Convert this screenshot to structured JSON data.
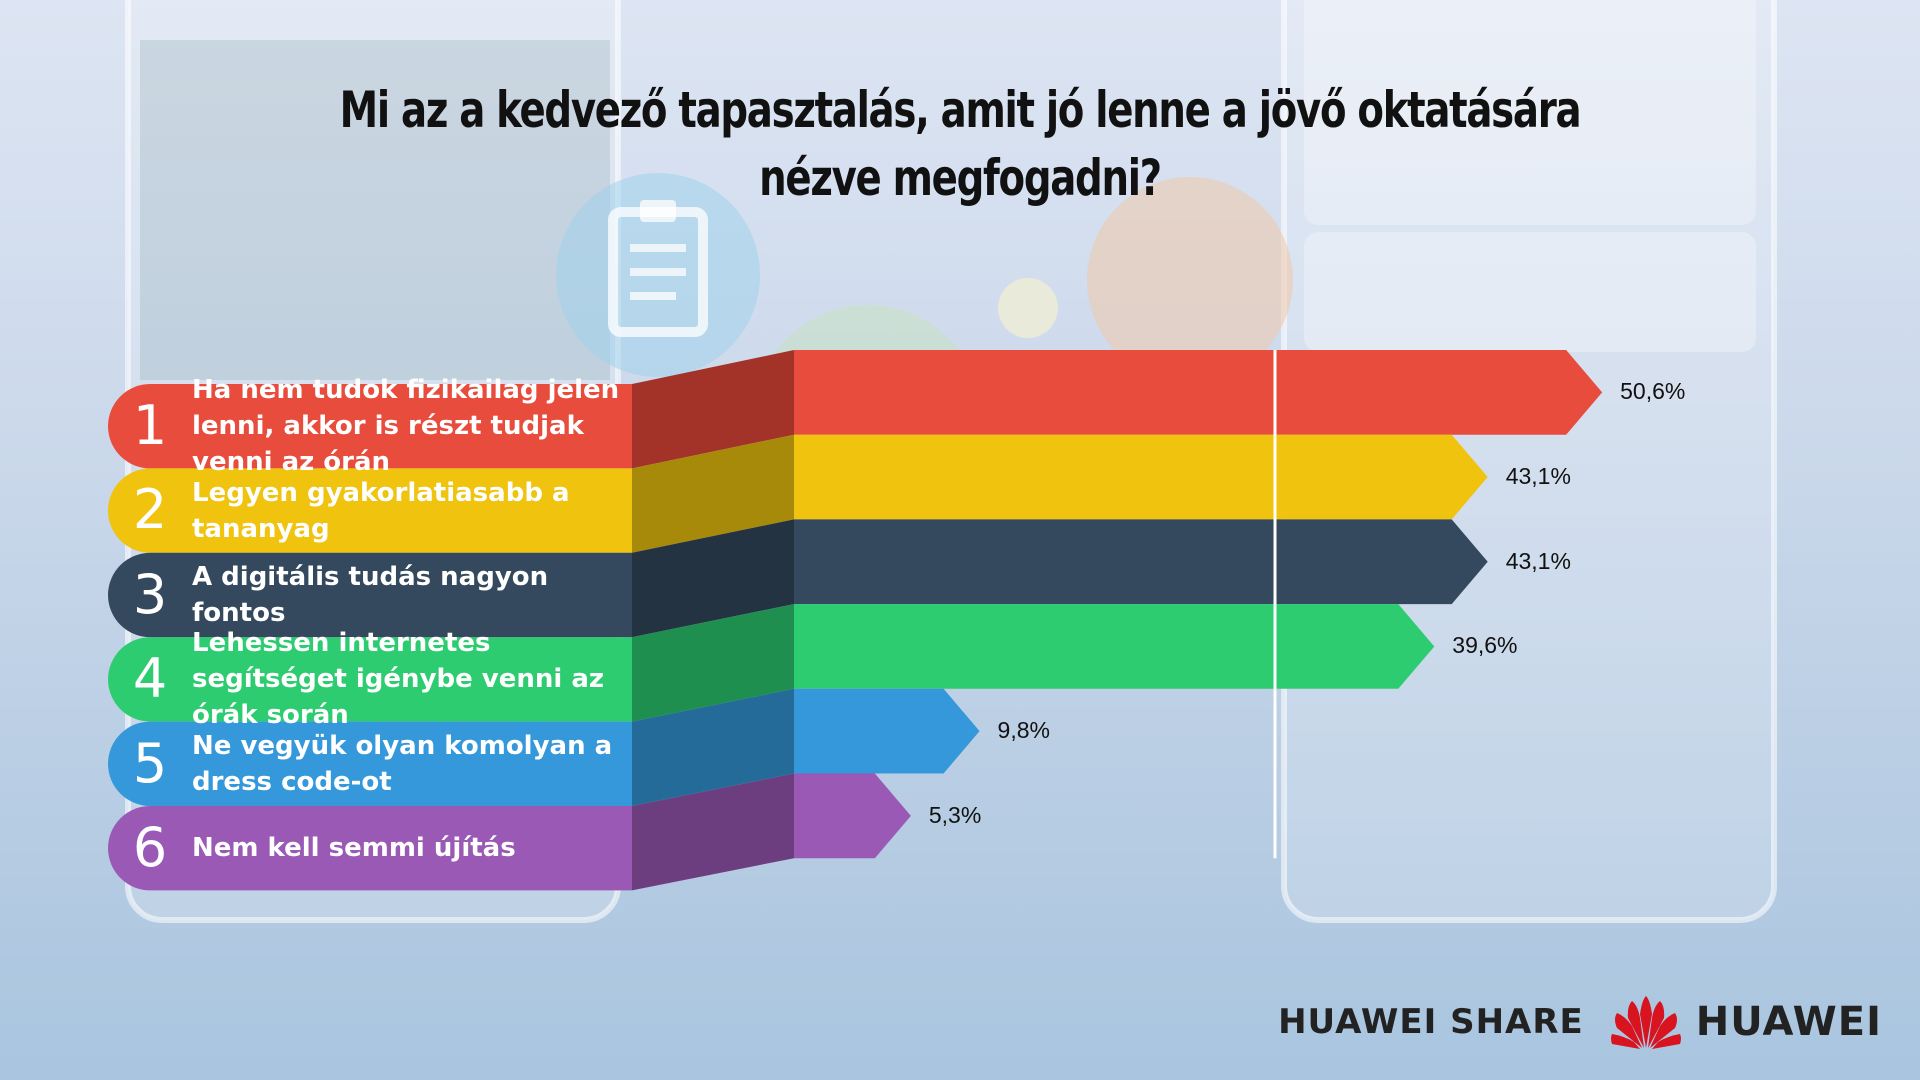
{
  "title": "Mi az a kedvező tapasztalás, amit jó lenne a jövő oktatására nézve megfogadni?",
  "footer": {
    "product": "HUAWEI SHARE",
    "brand": "HUAWEI"
  },
  "chart_data": {
    "type": "bar",
    "orientation": "horizontal",
    "title": "Mi az a kedvező tapasztalás, amit jó lenne a jövő oktatására nézve megfogadni?",
    "categories": [
      "Ha nem tudok fizikailag jelen lenni, akkor is részt tudjak venni az órán",
      "Legyen gyakorlatiasabb a tananyag",
      "A digitális tudás nagyon fontos",
      "Lehessen internetes segítséget igénybe venni az órák során",
      "Ne vegyük olyan komolyan a dress code-ot",
      "Nem kell semmi újítás"
    ],
    "ranks": [
      "1",
      "2",
      "3",
      "4",
      "5",
      "6"
    ],
    "values": [
      50.6,
      43.1,
      43.1,
      39.6,
      9.8,
      5.3
    ],
    "value_labels": [
      "50,6%",
      "43,1%",
      "43,1%",
      "39,6%",
      "9,8%",
      "5,3%"
    ],
    "colors": [
      "#e84c3d",
      "#f0c30f",
      "#34495e",
      "#2ecc71",
      "#3498db",
      "#9b59b6"
    ],
    "dark_colors": [
      "#a33328",
      "#a88a0b",
      "#243342",
      "#1f8f4f",
      "#246b9a",
      "#6c3e80"
    ]
  }
}
